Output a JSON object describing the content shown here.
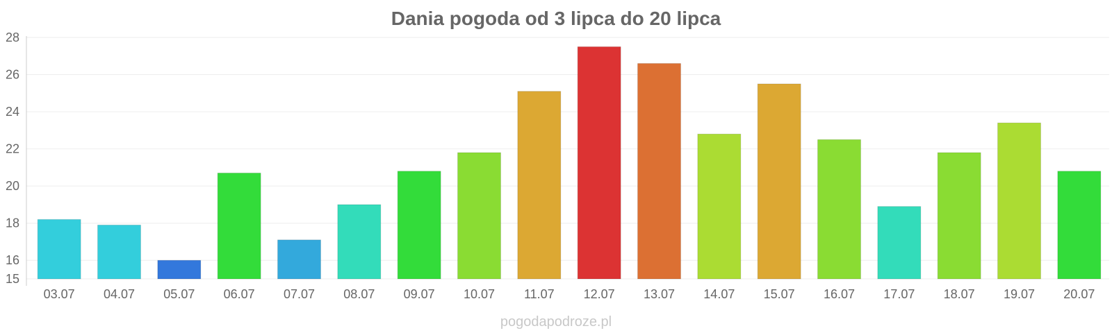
{
  "chart_data": {
    "type": "bar",
    "title": "Dania pogoda od 3 lipca do 20 lipca",
    "xlabel": "",
    "ylabel": "",
    "ylim": [
      15,
      28
    ],
    "yticks": [
      15,
      16,
      18,
      20,
      22,
      24,
      26,
      28
    ],
    "grid": true,
    "categories": [
      "03.07",
      "04.07",
      "05.07",
      "06.07",
      "07.07",
      "08.07",
      "09.07",
      "10.07",
      "11.07",
      "12.07",
      "13.07",
      "14.07",
      "15.07",
      "16.07",
      "17.07",
      "18.07",
      "19.07",
      "20.07"
    ],
    "values": [
      18.2,
      17.9,
      16.0,
      20.7,
      17.1,
      19.0,
      20.8,
      21.8,
      25.1,
      27.5,
      26.6,
      22.8,
      25.5,
      22.5,
      18.9,
      21.8,
      23.4,
      20.8
    ],
    "colors": [
      "#33cedc",
      "#33cedc",
      "#3378dc",
      "#33dc3a",
      "#33a9dc",
      "#33dcba",
      "#33dc3a",
      "#8adc33",
      "#dca833",
      "#dc3333",
      "#dc7033",
      "#abdc33",
      "#dca833",
      "#8adc33",
      "#33dcba",
      "#8adc33",
      "#abdc33",
      "#33dc3a"
    ]
  },
  "watermark": "pogodapodroze.pl"
}
